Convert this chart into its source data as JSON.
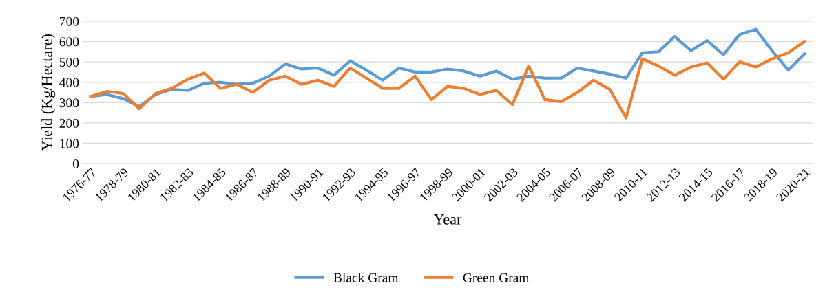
{
  "chart_data": {
    "type": "line",
    "xlabel": "Year",
    "ylabel": "Yield (Kg/Hectare)",
    "categories": [
      "1976-77",
      null,
      "1978-79",
      null,
      "1980-81",
      null,
      "1982-83",
      null,
      "1984-85",
      null,
      "1986-87",
      null,
      "1988-89",
      null,
      "1990-91",
      null,
      "1992-93",
      null,
      "1994-95",
      null,
      "1996-97",
      null,
      "1998-99",
      null,
      "2000-01",
      null,
      "2002-03",
      null,
      "2004-05",
      null,
      "2006-07",
      null,
      "2008-09",
      null,
      "2010-11",
      null,
      "2012-13",
      null,
      "2014-15",
      null,
      "2016-17",
      null,
      "2018-19",
      null,
      "2020-21"
    ],
    "series": [
      {
        "name": "Black Gram",
        "color": "#5b9bd5",
        "values": [
          330,
          340,
          320,
          280,
          340,
          365,
          360,
          395,
          400,
          390,
          395,
          430,
          490,
          465,
          470,
          435,
          505,
          460,
          410,
          470,
          450,
          450,
          465,
          455,
          430,
          455,
          415,
          430,
          420,
          420,
          470,
          455,
          440,
          420,
          545,
          550,
          625,
          555,
          605,
          535,
          635,
          660,
          555,
          460,
          540
        ]
      },
      {
        "name": "Green Gram",
        "color": "#ed7d31",
        "values": [
          330,
          355,
          345,
          270,
          345,
          370,
          415,
          445,
          370,
          390,
          350,
          410,
          430,
          390,
          410,
          380,
          470,
          420,
          370,
          370,
          430,
          315,
          380,
          370,
          340,
          360,
          290,
          480,
          315,
          305,
          350,
          410,
          365,
          225,
          515,
          480,
          435,
          475,
          495,
          415,
          500,
          475,
          515,
          545,
          600
        ]
      }
    ],
    "ylim": [
      0,
      700
    ],
    "yticks": [
      0,
      100,
      200,
      300,
      400,
      500,
      600,
      700
    ],
    "grid": "y",
    "legend": "bottom",
    "marker": "none",
    "line_style": "solid"
  }
}
